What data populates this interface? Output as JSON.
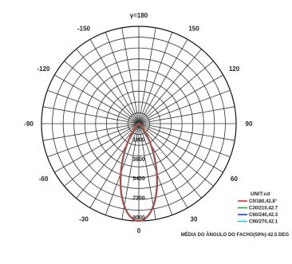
{
  "chart_data": {
    "type": "polar",
    "title": "",
    "angle_labels": [
      {
        "deg": 180,
        "text": "γ=180"
      },
      {
        "deg": -150,
        "text": "-150"
      },
      {
        "deg": 150,
        "text": "150"
      },
      {
        "deg": -120,
        "text": "-120"
      },
      {
        "deg": 120,
        "text": "120"
      },
      {
        "deg": -90,
        "text": "-90"
      },
      {
        "deg": 90,
        "text": "90"
      },
      {
        "deg": -60,
        "text": "-60"
      },
      {
        "deg": 60,
        "text": "60"
      },
      {
        "deg": -30,
        "text": "-30"
      },
      {
        "deg": 30,
        "text": "30"
      },
      {
        "deg": 0,
        "text": "0"
      }
    ],
    "radial_max": 9000,
    "radial_ticks": [
      {
        "value": 1800,
        "text": "1800"
      },
      {
        "value": 3600,
        "text": "3600"
      },
      {
        "value": 5400,
        "text": "5400"
      },
      {
        "value": 7200,
        "text": "7200"
      },
      {
        "value": 9000,
        "text": "9000"
      }
    ],
    "legend_title": "UNIT:cd",
    "legend_position": "bottom-right",
    "beam_angle_deg": 42.5,
    "series": [
      {
        "name": "C0/180,42.8°",
        "color": "#e8302c",
        "peak": 9000,
        "half_angle": 21.4
      },
      {
        "name": "C30/210,42.7",
        "color": "#2fa34a",
        "peak": 9000,
        "half_angle": 21.35
      },
      {
        "name": "C60/240,42.3",
        "color": "#1f3fc8",
        "peak": 9000,
        "half_angle": 21.15
      },
      {
        "name": "C90/270,42.1",
        "color": "#2ec8c8",
        "peak": 9000,
        "half_angle": 21.05
      }
    ],
    "footer": "MÉDIA DO ÂNGULO DO FACHO(50%):42.5 DEG"
  }
}
